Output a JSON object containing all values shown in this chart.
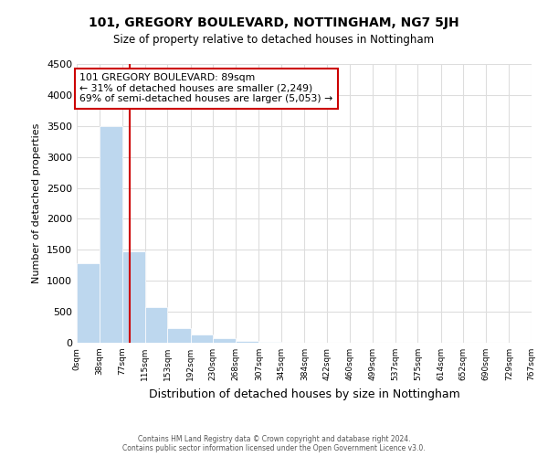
{
  "title": "101, GREGORY BOULEVARD, NOTTINGHAM, NG7 5JH",
  "subtitle": "Size of property relative to detached houses in Nottingham",
  "xlabel": "Distribution of detached houses by size in Nottingham",
  "ylabel": "Number of detached properties",
  "bar_color": "#bdd7ee",
  "bin_edges": [
    0,
    38,
    77,
    115,
    153,
    192,
    230,
    268,
    307,
    345,
    384,
    422,
    460,
    499,
    537,
    575,
    614,
    652,
    690,
    729,
    767
  ],
  "bin_labels": [
    "0sqm",
    "38sqm",
    "77sqm",
    "115sqm",
    "153sqm",
    "192sqm",
    "230sqm",
    "268sqm",
    "307sqm",
    "345sqm",
    "384sqm",
    "422sqm",
    "460sqm",
    "499sqm",
    "537sqm",
    "575sqm",
    "614sqm",
    "652sqm",
    "690sqm",
    "729sqm",
    "767sqm"
  ],
  "counts": [
    1280,
    3500,
    1470,
    580,
    240,
    130,
    80,
    30,
    10,
    5,
    2,
    0,
    0,
    0,
    0,
    0,
    0,
    0,
    0,
    0
  ],
  "property_size": 89,
  "red_line_color": "#cc0000",
  "annotation_text_line1": "101 GREGORY BOULEVARD: 89sqm",
  "annotation_text_line2": "← 31% of detached houses are smaller (2,249)",
  "annotation_text_line3": "69% of semi-detached houses are larger (5,053) →",
  "annotation_box_color": "#ffffff",
  "annotation_box_edge_color": "#cc0000",
  "ylim": [
    0,
    4500
  ],
  "yticks": [
    0,
    500,
    1000,
    1500,
    2000,
    2500,
    3000,
    3500,
    4000,
    4500
  ],
  "grid_color": "#dddddd",
  "background_color": "#ffffff",
  "footer_line1": "Contains HM Land Registry data © Crown copyright and database right 2024.",
  "footer_line2": "Contains public sector information licensed under the Open Government Licence v3.0."
}
